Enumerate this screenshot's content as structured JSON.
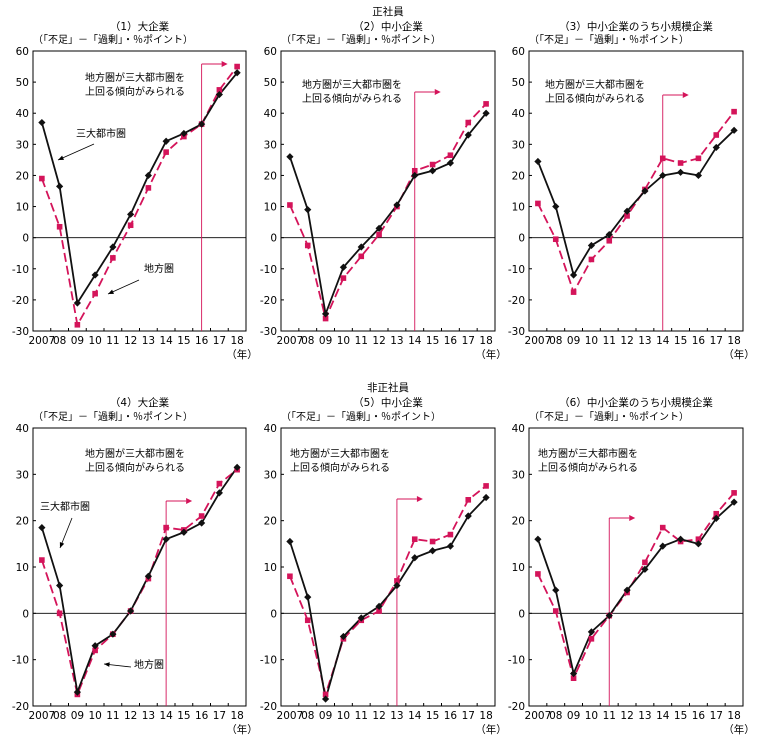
{
  "colors": {
    "metro": "#111111",
    "regional": "#d4145a",
    "threshold": "#d4145a",
    "axis": "#000000"
  },
  "chart_data": [
    {
      "type": "line",
      "group_title": "正社員",
      "title": "（1）大企業",
      "ylabel": "（「不足」－「過剰」・％ポイント）",
      "xlabel": "（年）",
      "categories": [
        "2007",
        "08",
        "09",
        "10",
        "11",
        "12",
        "13",
        "14",
        "15",
        "16",
        "17",
        "18"
      ],
      "yticks": [
        -30,
        -20,
        -10,
        0,
        10,
        20,
        30,
        40,
        50,
        60
      ],
      "ylim": [
        -30,
        60
      ],
      "series": [
        {
          "name": "三大都市圏",
          "values": [
            37,
            16.5,
            -21,
            -12,
            -3,
            7.5,
            20,
            31,
            33.5,
            36.5,
            46,
            53
          ]
        },
        {
          "name": "地方圏",
          "values": [
            19,
            3.5,
            -28,
            -18,
            -6.5,
            4,
            16,
            27.5,
            32.5,
            36.5,
            47.5,
            55
          ]
        }
      ],
      "threshold_year": "16",
      "annotation": [
        "地方圏が三大都市圏を",
        "上回る傾向がみられる"
      ],
      "labels": {
        "metro": "三大都市圏",
        "regional": "地方圏"
      }
    },
    {
      "type": "line",
      "group_title": "正社員",
      "title": "（2）中小企業",
      "ylabel": "（「不足」－「過剰」・％ポイント）",
      "xlabel": "（年）",
      "categories": [
        "2007",
        "08",
        "09",
        "10",
        "11",
        "12",
        "13",
        "14",
        "15",
        "16",
        "17",
        "18"
      ],
      "yticks": [
        -30,
        -20,
        -10,
        0,
        10,
        20,
        30,
        40,
        50,
        60
      ],
      "ylim": [
        -30,
        60
      ],
      "series": [
        {
          "name": "三大都市圏",
          "values": [
            26,
            9,
            -24.5,
            -9.5,
            -3,
            3,
            10.5,
            20,
            21.5,
            24,
            33,
            40
          ]
        },
        {
          "name": "地方圏",
          "values": [
            10.5,
            -2.5,
            -26,
            -13,
            -6,
            1,
            10,
            21.5,
            23.5,
            26.5,
            37,
            43
          ]
        }
      ],
      "threshold_year": "14",
      "annotation": [
        "地方圏が三大都市圏を",
        "上回る傾向がみられる"
      ]
    },
    {
      "type": "line",
      "group_title": "正社員",
      "title": "（3）中小企業のうち小規模企業",
      "ylabel": "（「不足」－「過剰」・％ポイント）",
      "xlabel": "（年）",
      "categories": [
        "2007",
        "08",
        "09",
        "10",
        "11",
        "12",
        "13",
        "14",
        "15",
        "16",
        "17",
        "18"
      ],
      "yticks": [
        -30,
        -20,
        -10,
        0,
        10,
        20,
        30,
        40,
        50,
        60
      ],
      "ylim": [
        -30,
        60
      ],
      "series": [
        {
          "name": "三大都市圏",
          "values": [
            24.5,
            10,
            -12,
            -2.5,
            1,
            8.5,
            15,
            20,
            21,
            20,
            29,
            34.5
          ]
        },
        {
          "name": "地方圏",
          "values": [
            11,
            -0.5,
            -17.5,
            -7,
            -1,
            7,
            15.5,
            25.5,
            24,
            25.5,
            33,
            40.5
          ]
        }
      ],
      "threshold_year": "14",
      "annotation": [
        "地方圏が三大都市圏を",
        "上回る傾向がみられる"
      ]
    },
    {
      "type": "line",
      "group_title": "非正社員",
      "title": "（4）大企業",
      "ylabel": "（「不足」－「過剰」・％ポイント）",
      "xlabel": "（年）",
      "categories": [
        "2007",
        "08",
        "09",
        "10",
        "11",
        "12",
        "13",
        "14",
        "15",
        "16",
        "17",
        "18"
      ],
      "yticks": [
        -20,
        -10,
        0,
        10,
        20,
        30,
        40
      ],
      "ylim": [
        -20,
        40
      ],
      "series": [
        {
          "name": "三大都市圏",
          "values": [
            18.5,
            6,
            -17,
            -7,
            -4.5,
            0.5,
            8,
            16,
            17.5,
            19.5,
            26,
            31.5
          ]
        },
        {
          "name": "地方圏",
          "values": [
            11.5,
            0,
            -17.5,
            -8,
            -4.5,
            0.5,
            7.5,
            18.5,
            18,
            21,
            28,
            31
          ]
        }
      ],
      "threshold_year": "14",
      "annotation": [
        "地方圏が三大都市圏を",
        "上回る傾向がみられる"
      ],
      "labels": {
        "metro": "三大都市圏",
        "regional": "地方圏"
      }
    },
    {
      "type": "line",
      "group_title": "非正社員",
      "title": "（5）中小企業",
      "ylabel": "（「不足」－「過剰」・％ポイント）",
      "xlabel": "（年）",
      "categories": [
        "2007",
        "08",
        "09",
        "10",
        "11",
        "12",
        "13",
        "14",
        "15",
        "16",
        "17",
        "18"
      ],
      "yticks": [
        -20,
        -10,
        0,
        10,
        20,
        30,
        40
      ],
      "ylim": [
        -20,
        40
      ],
      "series": [
        {
          "name": "三大都市圏",
          "values": [
            15.5,
            3.5,
            -18.5,
            -5,
            -1,
            1.5,
            6,
            12,
            13.5,
            14.5,
            21,
            25
          ]
        },
        {
          "name": "地方圏",
          "values": [
            8,
            -1.5,
            -17.5,
            -5.5,
            -1.5,
            0.5,
            7,
            16,
            15.5,
            17,
            24.5,
            27.5
          ]
        }
      ],
      "threshold_year": "13",
      "annotation": [
        "地方圏が三大都市圏を",
        "上回る傾向がみられる"
      ]
    },
    {
      "type": "line",
      "group_title": "非正社員",
      "title": "（6）中小企業のうち小規模企業",
      "ylabel": "（「不足」－「過剰」・％ポイント）",
      "xlabel": "（年）",
      "categories": [
        "2007",
        "08",
        "09",
        "10",
        "11",
        "12",
        "13",
        "14",
        "15",
        "16",
        "17",
        "18"
      ],
      "yticks": [
        -20,
        -10,
        0,
        10,
        20,
        30,
        40
      ],
      "ylim": [
        -20,
        40
      ],
      "series": [
        {
          "name": "三大都市圏",
          "values": [
            16,
            5,
            -13,
            -4,
            -0.5,
            5,
            9.5,
            14.5,
            16,
            15,
            20.5,
            24
          ]
        },
        {
          "name": "地方圏",
          "values": [
            8.5,
            0.5,
            -14,
            -5.5,
            -0.5,
            4.5,
            11,
            18.5,
            15.5,
            16,
            21.5,
            26
          ]
        }
      ],
      "threshold_year": "11",
      "annotation": [
        "地方圏が三大都市圏を",
        "上回る傾向がみられる"
      ]
    }
  ]
}
